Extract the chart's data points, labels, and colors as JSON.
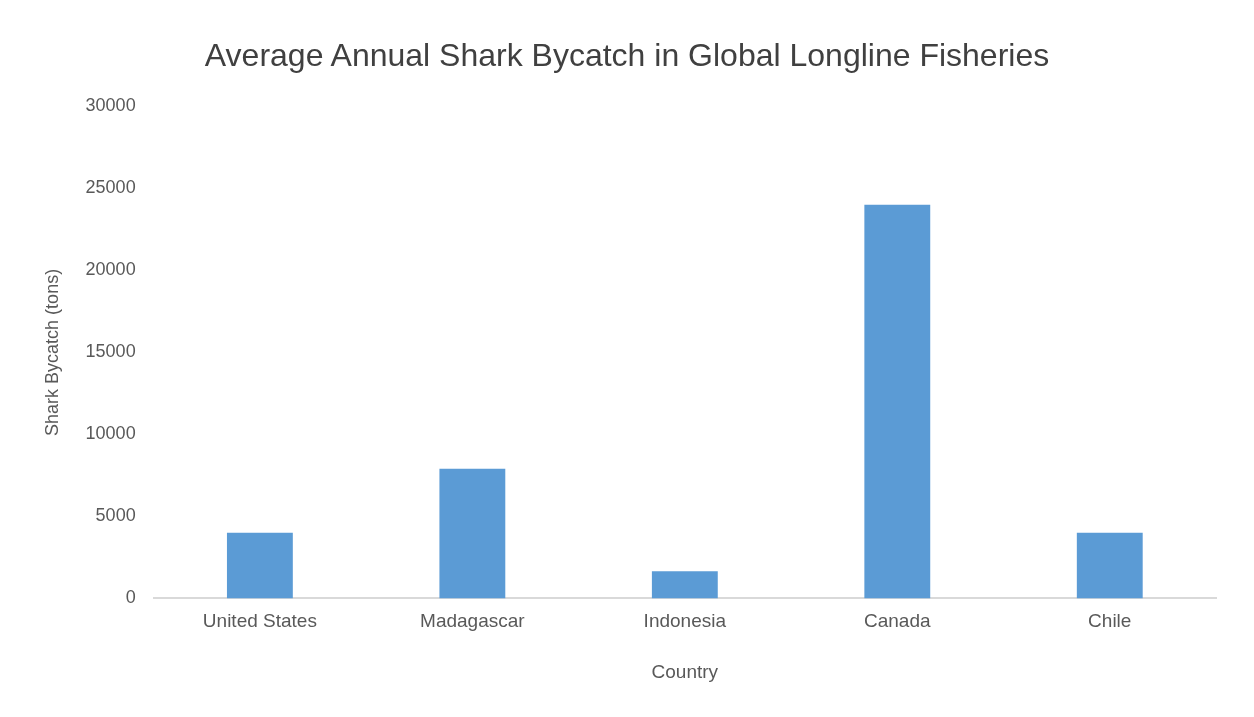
{
  "chart_data": {
    "type": "bar",
    "title": "Average Annual Shark Bycatch in Global Longline Fisheries",
    "xlabel": "Country",
    "ylabel": "Shark Bycatch (tons)",
    "categories": [
      "United States",
      "Madagascar",
      "Indonesia",
      "Canada",
      "Chile"
    ],
    "values": [
      4000,
      7900,
      1650,
      24000,
      4000
    ],
    "color": "#5b9bd5",
    "ylim": [
      0,
      30000
    ],
    "yticks": [
      0,
      5000,
      10000,
      15000,
      20000,
      25000,
      30000
    ],
    "grid": false,
    "legend": false
  }
}
